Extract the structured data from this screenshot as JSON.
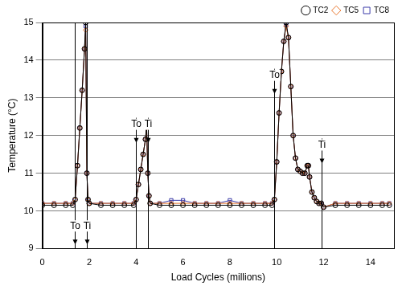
{
  "chart_data": {
    "type": "scatter",
    "x_label": "Load Cycles (millions)",
    "y_label": "Temperature (°C)",
    "x": [
      0,
      0.5,
      1.0,
      1.3,
      1.4,
      1.5,
      1.6,
      1.7,
      1.8,
      1.85,
      1.9,
      1.95,
      2.0,
      2.5,
      3.0,
      3.5,
      3.9,
      4.0,
      4.1,
      4.2,
      4.3,
      4.4,
      4.45,
      4.5,
      4.55,
      4.6,
      5.0,
      5.5,
      6.0,
      6.5,
      7.0,
      7.5,
      8.0,
      8.5,
      9.0,
      9.5,
      9.8,
      9.9,
      10.0,
      10.1,
      10.2,
      10.3,
      10.4,
      10.5,
      10.6,
      10.7,
      10.8,
      10.9,
      11.0,
      11.1,
      11.2,
      11.3,
      11.35,
      11.4,
      11.5,
      11.6,
      11.7,
      11.8,
      11.9,
      12.0,
      12.5,
      13.0,
      13.5,
      14.0,
      14.5,
      14.8
    ],
    "series": [
      {
        "name": "TC8",
        "color": "#3a3aa8",
        "marker": "square",
        "line_style": "solid",
        "values": [
          10.2,
          10.2,
          10.2,
          10.2,
          10.3,
          11.2,
          12.2,
          13.2,
          14.3,
          14.9,
          11.0,
          10.3,
          10.2,
          10.2,
          10.2,
          10.2,
          10.2,
          10.3,
          10.7,
          11.1,
          11.5,
          11.9,
          12.25,
          11.0,
          10.4,
          10.2,
          10.2,
          10.28,
          10.28,
          10.2,
          10.2,
          10.2,
          10.28,
          10.2,
          10.2,
          10.2,
          10.2,
          10.3,
          11.3,
          12.6,
          13.7,
          14.5,
          14.95,
          14.6,
          13.3,
          12.0,
          11.4,
          11.1,
          11.05,
          11.0,
          11.0,
          11.2,
          11.2,
          10.9,
          10.5,
          10.35,
          10.25,
          10.2,
          10.2,
          10.1,
          10.2,
          10.2,
          10.2,
          10.2,
          10.2,
          10.2
        ]
      },
      {
        "name": "TC5",
        "color": "#e8742a",
        "marker": "diamond",
        "line_style": "solid",
        "values": [
          10.2,
          10.2,
          10.2,
          10.2,
          10.3,
          11.2,
          12.2,
          13.2,
          14.3,
          14.8,
          11.0,
          10.3,
          10.2,
          10.2,
          10.2,
          10.2,
          10.2,
          10.3,
          10.7,
          11.1,
          11.5,
          11.9,
          12.2,
          11.0,
          10.4,
          10.2,
          10.2,
          10.2,
          10.2,
          10.2,
          10.2,
          10.2,
          10.2,
          10.2,
          10.2,
          10.2,
          10.2,
          10.3,
          11.3,
          12.6,
          13.7,
          14.5,
          14.9,
          14.6,
          13.3,
          12.0,
          11.4,
          11.1,
          11.05,
          11.0,
          11.0,
          11.2,
          11.2,
          10.9,
          10.5,
          10.35,
          10.25,
          10.2,
          10.2,
          10.1,
          10.2,
          10.2,
          10.2,
          10.2,
          10.2,
          10.2
        ]
      },
      {
        "name": "TC2",
        "color": "#000000",
        "marker": "circle",
        "line_style": "solid",
        "values": [
          10.15,
          10.15,
          10.15,
          10.15,
          10.3,
          11.2,
          12.2,
          13.2,
          14.3,
          15.0,
          11.0,
          10.3,
          10.2,
          10.15,
          10.15,
          10.15,
          10.15,
          10.3,
          10.7,
          11.1,
          11.5,
          11.9,
          12.3,
          11.0,
          10.4,
          10.2,
          10.15,
          10.15,
          10.15,
          10.15,
          10.15,
          10.15,
          10.15,
          10.15,
          10.15,
          10.15,
          10.15,
          10.3,
          11.3,
          12.6,
          13.7,
          14.5,
          15.0,
          14.6,
          13.3,
          12.0,
          11.4,
          11.1,
          11.05,
          11.0,
          11.0,
          11.2,
          11.2,
          10.9,
          10.5,
          10.35,
          10.25,
          10.2,
          10.2,
          10.1,
          10.15,
          10.15,
          10.15,
          10.15,
          10.15,
          10.15
        ]
      }
    ],
    "xlim": [
      0,
      15
    ],
    "ylim": [
      9,
      15
    ],
    "xticks": [
      0,
      2,
      4,
      6,
      8,
      10,
      12,
      14
    ],
    "yticks": [
      9,
      10,
      11,
      12,
      13,
      14,
      15
    ],
    "grid": true,
    "legend": "top-right",
    "annotations": [
      {
        "x": 1.4,
        "y": 9.6,
        "label": "To"
      },
      {
        "x": 1.9,
        "y": 9.6,
        "label": "Ti"
      },
      {
        "x": 4.0,
        "y": 12.3,
        "label": "To"
      },
      {
        "x": 4.5,
        "y": 12.3,
        "label": "Ti"
      },
      {
        "x": 9.9,
        "y": 13.6,
        "label": "To"
      },
      {
        "x": 11.9,
        "y": 11.75,
        "label": "Ti"
      }
    ]
  }
}
